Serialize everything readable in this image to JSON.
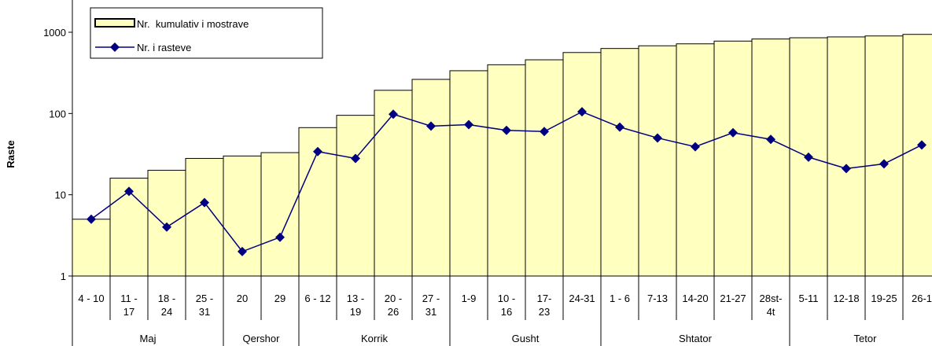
{
  "chart_data": {
    "type": "bar-line",
    "ylabel": "Raste",
    "log_scale": true,
    "ylim": [
      1,
      1000
    ],
    "yticks": [
      1,
      10,
      100,
      1000
    ],
    "legend": "upper left",
    "groups": [
      {
        "label": "Maj",
        "categories": [
          "4 - 10",
          "11 -\n17",
          "18 -\n24",
          "25 -\n31"
        ]
      },
      {
        "label": "Qershor",
        "categories": [
          "20",
          "29"
        ]
      },
      {
        "label": "Korrik",
        "categories": [
          "6 - 12",
          "13 -\n19",
          "20 -\n26",
          "27 -\n31"
        ]
      },
      {
        "label": "Gusht",
        "categories": [
          "1-9",
          "10 -\n16",
          "17-\n23",
          "24-31"
        ]
      },
      {
        "label": "Shtator",
        "categories": [
          "1 - 6",
          "7-13",
          "14-20",
          "21-27",
          "28st-\n4t"
        ]
      },
      {
        "label": "Tetor",
        "categories": [
          "5-11",
          "12-18",
          "19-25",
          "26-1"
        ]
      }
    ],
    "series": [
      {
        "name": "Nr.  kumulativ i mostrave",
        "kind": "bar",
        "color": "#ffffc0",
        "values": [
          5,
          16,
          20,
          28,
          30,
          33,
          67,
          95,
          193,
          263,
          336,
          398,
          458,
          563,
          631,
          681,
          720,
          778,
          826,
          855,
          876,
          900,
          941
        ]
      },
      {
        "name": "Nr. i rasteve",
        "kind": "line",
        "color": "#000080",
        "values": [
          5,
          11,
          4,
          8,
          2,
          3,
          34,
          28,
          98,
          70,
          73,
          62,
          60,
          105,
          68,
          50,
          39,
          58,
          48,
          29,
          21,
          24,
          41
        ]
      }
    ]
  }
}
